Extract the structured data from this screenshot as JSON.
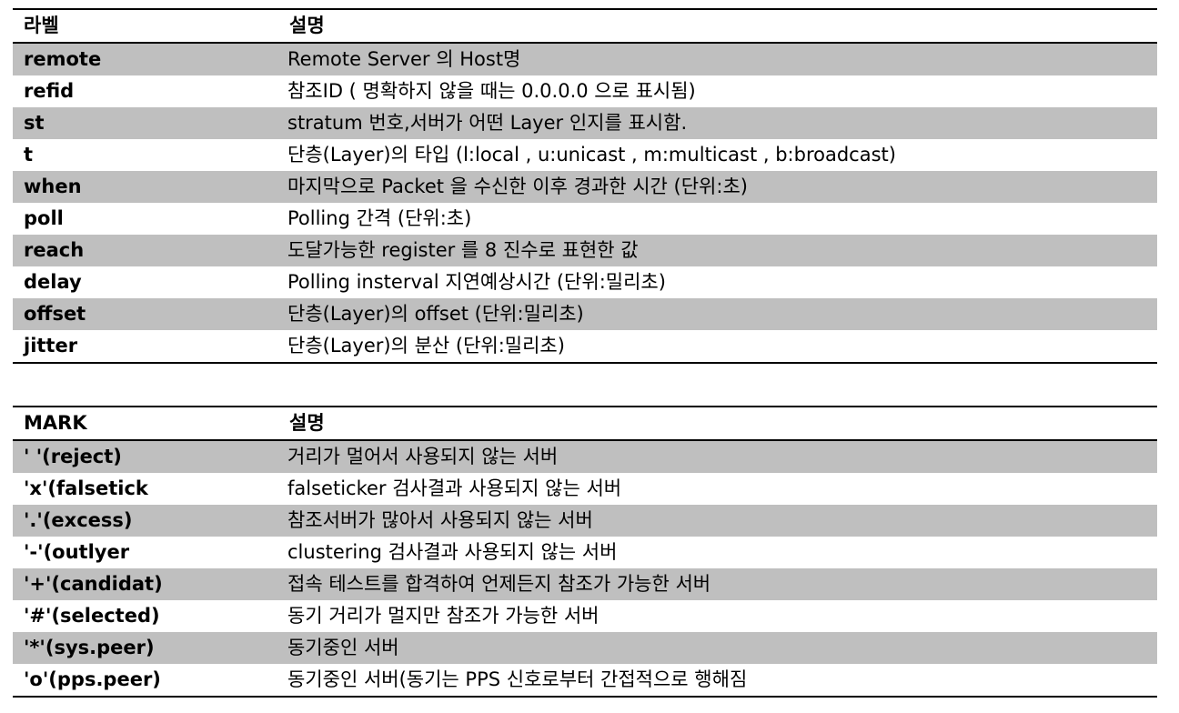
{
  "labels_table": {
    "headers": [
      "라벨",
      "설명"
    ],
    "rows": [
      {
        "key": "remote",
        "desc": "Remote Server 의 Host명"
      },
      {
        "key": "refid",
        "desc": "참조ID ( 명확하지 않을 때는 0.0.0.0 으로 표시됨)"
      },
      {
        "key": "st",
        "desc": "stratum 번호,서버가 어떤 Layer 인지를 표시함."
      },
      {
        "key": "t",
        "desc": "단층(Layer)의 타입 (l:local , u:unicast , m:multicast , b:broadcast)"
      },
      {
        "key": "when",
        "desc": "마지막으로 Packet 을 수신한 이후 경과한 시간 (단위:초)"
      },
      {
        "key": "poll",
        "desc": "Polling 간격 (단위:초)"
      },
      {
        "key": "reach",
        "desc": "도달가능한 register 를 8 진수로 표현한 값"
      },
      {
        "key": "delay",
        "desc": "Polling insterval 지연예상시간 (단위:밀리초)"
      },
      {
        "key": "offset",
        "desc": "단층(Layer)의 offset (단위:밀리초)"
      },
      {
        "key": "jitter",
        "desc": "단층(Layer)의 분산 (단위:밀리초)"
      }
    ]
  },
  "marks_table": {
    "headers": [
      "MARK",
      "설명"
    ],
    "rows": [
      {
        "key": "' '(reject)",
        "desc": "거리가 멀어서 사용되지 않는 서버"
      },
      {
        "key": "'x'(falsetick",
        "desc": "falseticker 검사결과 사용되지 않는 서버"
      },
      {
        "key": "'.'(excess)",
        "desc": "참조서버가 많아서 사용되지 않는 서버"
      },
      {
        "key": "'-'(outlyer",
        "desc": "clustering 검사결과 사용되지 않는 서버"
      },
      {
        "key": "'+'(candidat)",
        "desc": "접속 테스트를 합격하여 언제든지 참조가 가능한 서버"
      },
      {
        "key": "'#'(selected)",
        "desc": "동기 거리가 멀지만 참조가 가능한 서버"
      },
      {
        "key": "'*'(sys.peer)",
        "desc": "동기중인 서버"
      },
      {
        "key": "'o'(pps.peer)",
        "desc": "동기중인 서버(동기는 PPS 신호로부터 간접적으로 행해짐"
      }
    ]
  },
  "colors": {
    "row_shade": "#bfbfbf",
    "rule": "#000000",
    "background": "#ffffff"
  }
}
